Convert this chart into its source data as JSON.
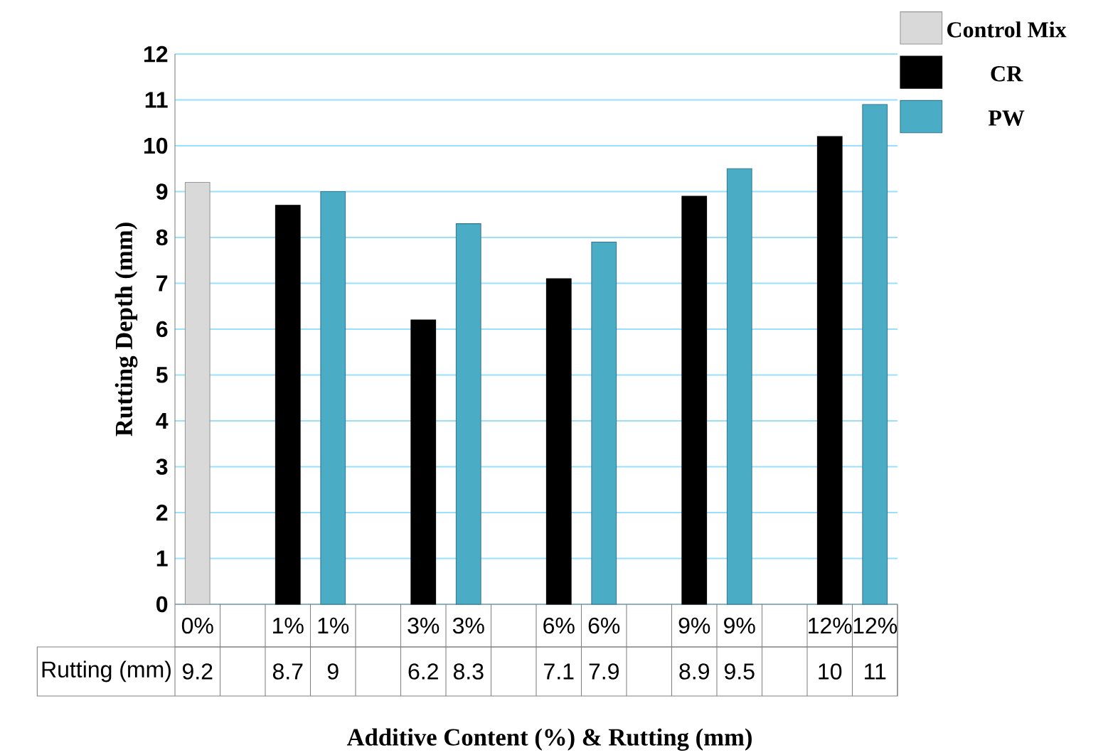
{
  "chart_data": {
    "type": "bar",
    "xlabel": "Additive Content (%) & Rutting (mm)",
    "ylabel": "Rutting Depth (mm)",
    "categories": [
      "0%",
      null,
      "1%",
      "1%",
      null,
      "3%",
      "3%",
      null,
      "6%",
      "6%",
      null,
      "9%",
      "9%",
      null,
      "12%",
      "12%"
    ],
    "series": [
      {
        "name": "Control Mix",
        "color": "#d9d9d9",
        "values": [
          9.2,
          null,
          null,
          null,
          null,
          null,
          null,
          null,
          null,
          null,
          null,
          null,
          null,
          null,
          null,
          null
        ],
        "value_labels": [
          "9.2",
          null,
          null,
          null,
          null,
          null,
          null,
          null,
          null,
          null,
          null,
          null,
          null,
          null,
          null,
          null
        ]
      },
      {
        "name": "CR",
        "color": "#000000",
        "values": [
          null,
          null,
          8.7,
          null,
          null,
          6.2,
          null,
          null,
          7.1,
          null,
          null,
          8.9,
          null,
          null,
          10.2,
          null
        ],
        "value_labels": [
          null,
          null,
          "8.7",
          null,
          null,
          "6.2",
          null,
          null,
          "7.1",
          null,
          null,
          "8.9",
          null,
          null,
          "10",
          null
        ]
      },
      {
        "name": "PW",
        "color": "#4bacc6",
        "values": [
          null,
          null,
          null,
          9.0,
          null,
          null,
          8.3,
          null,
          null,
          7.9,
          null,
          null,
          9.5,
          null,
          null,
          10.9
        ],
        "value_labels": [
          null,
          null,
          null,
          "9",
          null,
          null,
          "8.3",
          null,
          null,
          "7.9",
          null,
          null,
          "9.5",
          null,
          null,
          "11"
        ]
      }
    ],
    "annotations": [
      "Rutting (mm)"
    ],
    "ylim": [
      0,
      12
    ],
    "yticks": [
      0,
      1,
      2,
      3,
      4,
      5,
      6,
      7,
      8,
      9,
      10,
      11,
      12
    ],
    "grid": "y",
    "legend": "top right"
  }
}
